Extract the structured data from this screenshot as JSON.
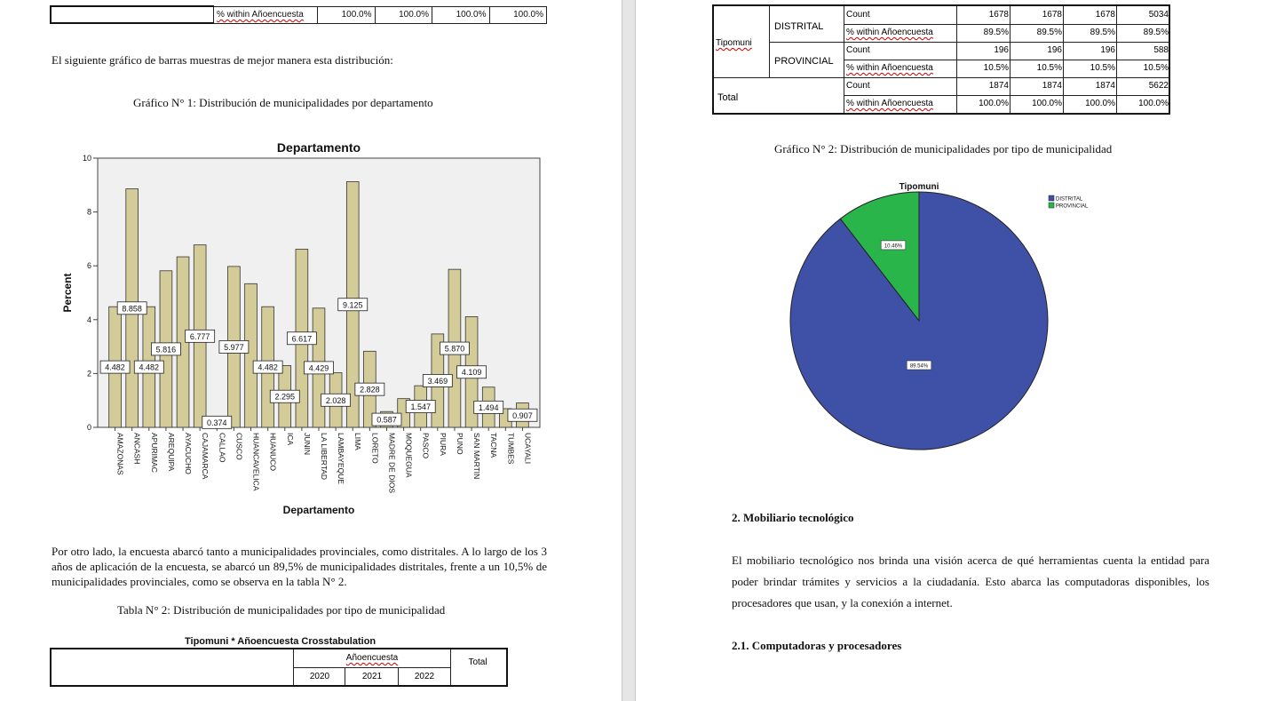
{
  "left": {
    "top_row": {
      "label": "% within Añoencuesta",
      "values": [
        "100.0%",
        "100.0%",
        "100.0%",
        "100.0%"
      ]
    },
    "intro_text": "El siguiente gráfico de barras muestras de mejor manera esta distribución:",
    "caption1": "Gráfico N° 1: Distribución de municipalidades por departamento",
    "paragraph": "Por otro lado, la encuesta abarcó tanto a municipalidades provinciales, como distritales. A lo largo de los 3 años de aplicación de la encuesta, se abarcó un 89,5% de municipalidades distritales, frente a un 10,5% de municipalidades provinciales, como se observa en la tabla N° 2.",
    "caption2": "Tabla N° 2: Distribución de municipalidades por tipo de municipalidad",
    "crosstab": {
      "title": "Tipomuni * Añoencuesta Crosstabulation",
      "group_header": "Añoencuesta",
      "total_header": "Total",
      "years": [
        "2020",
        "2021",
        "2022"
      ]
    }
  },
  "right": {
    "table": {
      "row_group": "Tipomuni",
      "rows": [
        {
          "group": "DISTRITAL",
          "stat": "Count",
          "values": [
            "1678",
            "1678",
            "1678",
            "5034"
          ]
        },
        {
          "group": "",
          "stat": "% within Añoencuesta",
          "values": [
            "89.5%",
            "89.5%",
            "89.5%",
            "89.5%"
          ]
        },
        {
          "group": "PROVINCIAL",
          "stat": "Count",
          "values": [
            "196",
            "196",
            "196",
            "588"
          ]
        },
        {
          "group": "",
          "stat": "% within Añoencuesta",
          "values": [
            "10.5%",
            "10.5%",
            "10.5%",
            "10.5%"
          ]
        },
        {
          "group": "Total",
          "stat": "Count",
          "values": [
            "1874",
            "1874",
            "1874",
            "5622"
          ]
        },
        {
          "group": "",
          "stat": "% within Añoencuesta",
          "values": [
            "100.0%",
            "100.0%",
            "100.0%",
            "100.0%"
          ]
        }
      ]
    },
    "caption": "Gráfico N° 2: Distribución de municipalidades por tipo de municipalidad",
    "section_heading": "2.  Mobiliario tecnológico",
    "section_text": "El mobiliario tecnológico nos brinda una visión acerca de qué herramientas cuenta la entidad para poder brindar trámites y servicios a la ciudadanía. Esto abarca las computadoras disponibles, los procesadores que usan, y la conexión a internet.",
    "subsection_heading": "2.1. Computadoras y procesadores"
  },
  "chart_data": [
    {
      "type": "bar",
      "title": "Departamento",
      "xlabel": "Departamento",
      "ylabel": "Percent",
      "ylim": [
        0,
        10
      ],
      "yticks": [
        0,
        2,
        4,
        6,
        8,
        10
      ],
      "grid": false,
      "bar_color": "#d4cc98",
      "categories": [
        "AMAZONAS",
        "ANCASH",
        "APURIMAC",
        "AREQUIPA",
        "AYACUCHO",
        "CAJAMARCA",
        "CALLAO",
        "CUSCO",
        "HUANCAVELICA",
        "HUANUCO",
        "ICA",
        "JUNIN",
        "LA LIBERTAD",
        "LAMBAYEQUE",
        "LIMA",
        "LORETO",
        "MADRE DE DIOS",
        "MOQUEGUA",
        "PASCO",
        "PIURA",
        "PUNO",
        "SAN MARTIN",
        "TACNA",
        "TUMBES",
        "UCAYALI"
      ],
      "values": [
        4.482,
        8.858,
        4.482,
        5.816,
        6.335,
        6.777,
        0.374,
        5.977,
        5.336,
        4.482,
        2.295,
        6.617,
        4.429,
        2.028,
        9.125,
        2.828,
        0.587,
        1.067,
        1.547,
        3.469,
        5.87,
        4.109,
        1.494,
        0.694,
        0.907
      ],
      "data_labels": [
        {
          "index": 0,
          "text": "4.482"
        },
        {
          "index": 1,
          "text": "8.858"
        },
        {
          "index": 2,
          "text": "4.482"
        },
        {
          "index": 3,
          "text": "5.816"
        },
        {
          "index": 5,
          "text": "6.777"
        },
        {
          "index": 6,
          "text": "0.374"
        },
        {
          "index": 7,
          "text": "5.977"
        },
        {
          "index": 9,
          "text": "4.482"
        },
        {
          "index": 10,
          "text": "2.295"
        },
        {
          "index": 11,
          "text": "6.617"
        },
        {
          "index": 12,
          "text": "4.429"
        },
        {
          "index": 13,
          "text": "2.028"
        },
        {
          "index": 14,
          "text": "9.125"
        },
        {
          "index": 15,
          "text": "2.828"
        },
        {
          "index": 16,
          "text": "0.587"
        },
        {
          "index": 18,
          "text": "1.547"
        },
        {
          "index": 19,
          "text": "3.469"
        },
        {
          "index": 20,
          "text": "5.870"
        },
        {
          "index": 21,
          "text": "4.109"
        },
        {
          "index": 22,
          "text": "1.494"
        },
        {
          "index": 24,
          "text": "0.907"
        }
      ]
    },
    {
      "type": "pie",
      "title": "Tipomuni",
      "legend_position": "top-right",
      "slices": [
        {
          "name": "DISTRITAL",
          "value": 89.54,
          "label": "89.54%",
          "color": "#3f51a7"
        },
        {
          "name": "PROVINCIAL",
          "value": 10.46,
          "label": "10.46%",
          "color": "#2ab54a"
        }
      ]
    }
  ]
}
